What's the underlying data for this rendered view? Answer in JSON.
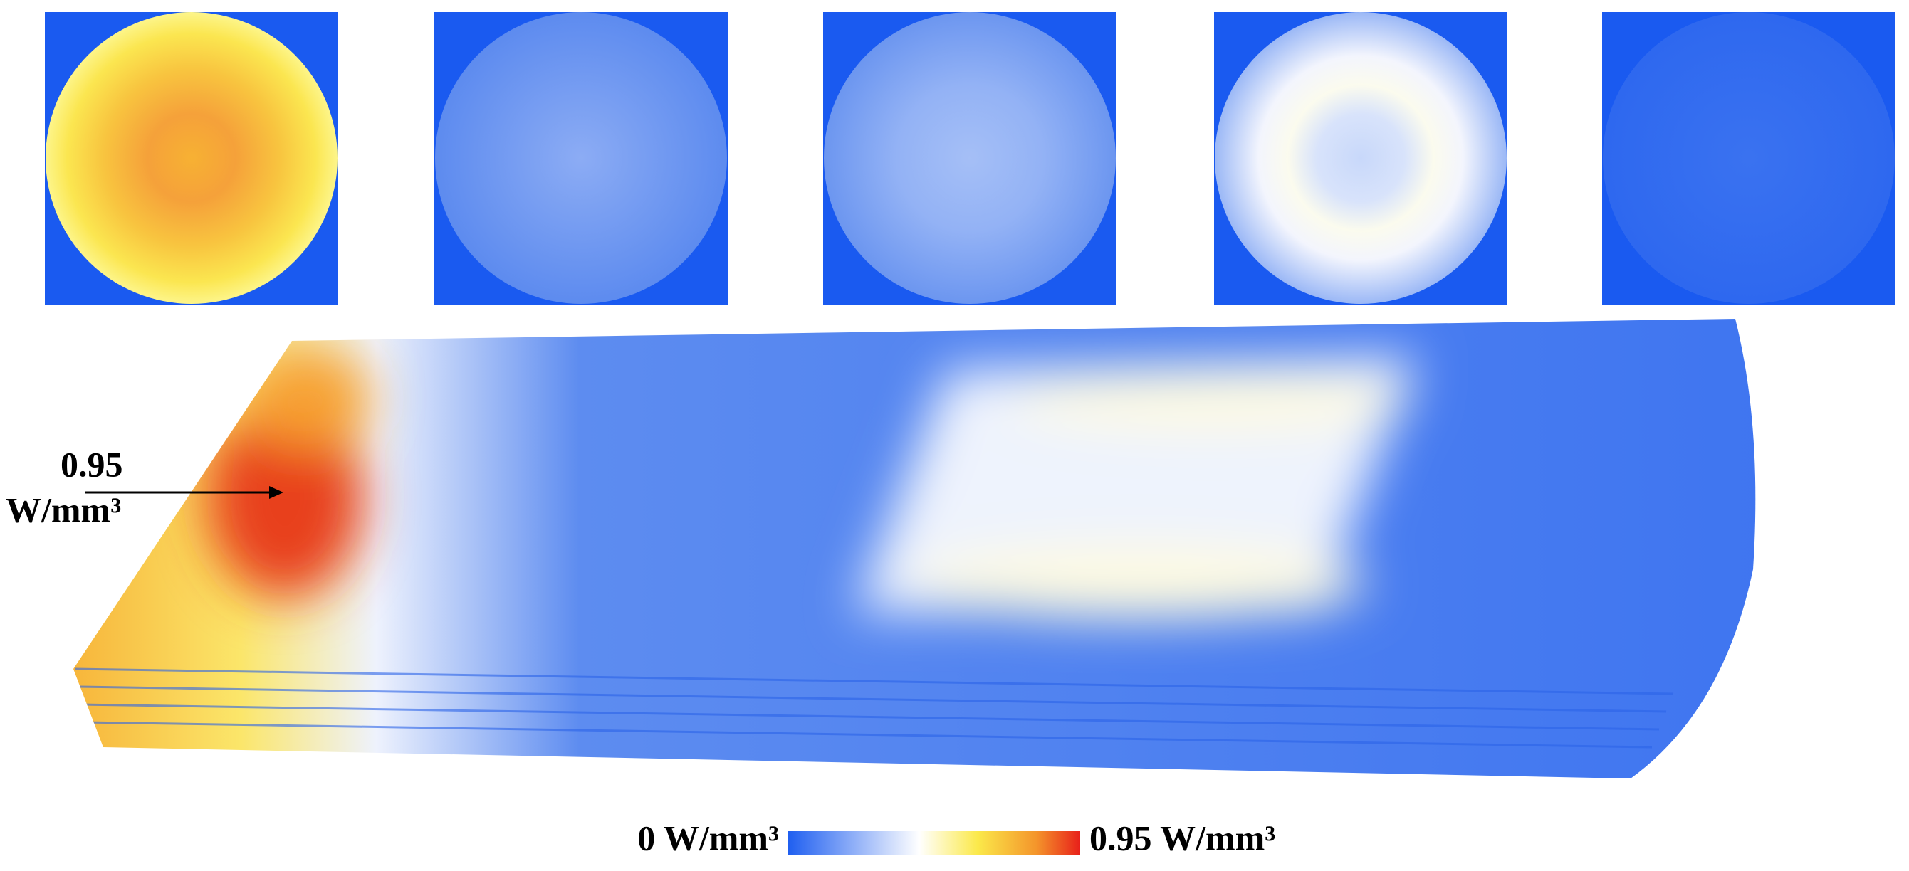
{
  "annotation": {
    "value": "0.95",
    "unit": "W/mm³"
  },
  "colorbar": {
    "min_label": "0 W/mm³",
    "max_label": "0.95 W/mm³"
  }
}
